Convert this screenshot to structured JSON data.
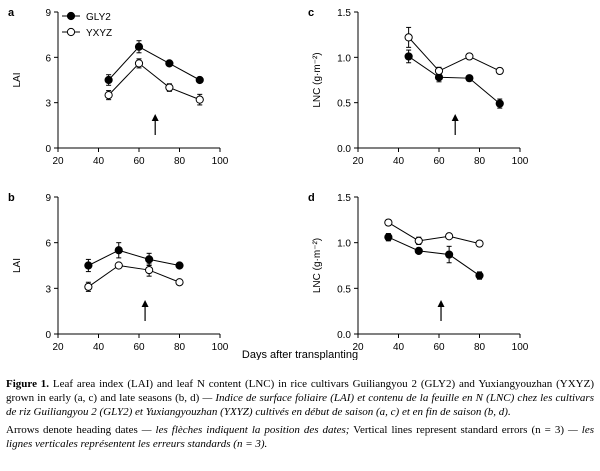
{
  "chart_data": [
    {
      "type": "line",
      "panel": "a",
      "ylabel": "LAI",
      "xlim": [
        20,
        100
      ],
      "ylim": [
        0,
        9
      ],
      "xticks": [
        20,
        40,
        60,
        80,
        100
      ],
      "yticks": [
        0,
        3,
        6,
        9
      ],
      "arrow_x": 68,
      "legend": [
        "GLY2",
        "YXYZ"
      ],
      "legend_position": "top-left",
      "series": [
        {
          "name": "GLY2",
          "marker": "filled",
          "x": [
            45,
            60,
            75,
            90
          ],
          "y": [
            4.5,
            6.7,
            5.6,
            4.5
          ],
          "err": [
            0.35,
            0.4,
            0.15,
            0.15
          ]
        },
        {
          "name": "YXYZ",
          "marker": "open",
          "x": [
            45,
            60,
            75,
            90
          ],
          "y": [
            3.5,
            5.6,
            4.0,
            3.2
          ],
          "err": [
            0.3,
            0.3,
            0.25,
            0.35
          ]
        }
      ]
    },
    {
      "type": "line",
      "panel": "c",
      "ylabel": "LNC (g·m⁻²)",
      "xlim": [
        20,
        100
      ],
      "ylim": [
        0,
        1.5
      ],
      "xticks": [
        20,
        40,
        60,
        80,
        100
      ],
      "yticks": [
        0.0,
        0.5,
        1.0,
        1.5
      ],
      "arrow_x": 68,
      "series": [
        {
          "name": "GLY2",
          "marker": "filled",
          "x": [
            45,
            60,
            75,
            90
          ],
          "y": [
            1.01,
            0.78,
            0.77,
            0.49
          ],
          "err": [
            0.07,
            0.05,
            0.03,
            0.05
          ]
        },
        {
          "name": "YXYZ",
          "marker": "open",
          "x": [
            45,
            60,
            75,
            90
          ],
          "y": [
            1.22,
            0.85,
            1.01,
            0.85
          ],
          "err": [
            0.11,
            0.04,
            0.02,
            0.03
          ]
        }
      ]
    },
    {
      "type": "line",
      "panel": "b",
      "ylabel": "LAI",
      "xlim": [
        20,
        100
      ],
      "ylim": [
        0,
        9
      ],
      "xticks": [
        20,
        40,
        60,
        80,
        100
      ],
      "yticks": [
        0,
        3,
        6,
        9
      ],
      "arrow_x": 63,
      "series": [
        {
          "name": "GLY2",
          "marker": "filled",
          "x": [
            35,
            50,
            65,
            80
          ],
          "y": [
            4.5,
            5.5,
            4.9,
            4.5
          ],
          "err": [
            0.4,
            0.5,
            0.4,
            0.15
          ]
        },
        {
          "name": "YXYZ",
          "marker": "open",
          "x": [
            35,
            50,
            65,
            80
          ],
          "y": [
            3.1,
            4.5,
            4.2,
            3.4
          ],
          "err": [
            0.3,
            0.1,
            0.4,
            0.15
          ]
        }
      ]
    },
    {
      "type": "line",
      "panel": "d",
      "ylabel": "LNC (g·m⁻²)",
      "xlim": [
        20,
        100
      ],
      "ylim": [
        0,
        1.5
      ],
      "xticks": [
        20,
        40,
        60,
        80,
        100
      ],
      "yticks": [
        0.0,
        0.5,
        1.0,
        1.5
      ],
      "arrow_x": 61,
      "series": [
        {
          "name": "GLY2",
          "marker": "filled",
          "x": [
            35,
            50,
            65,
            80
          ],
          "y": [
            1.06,
            0.91,
            0.87,
            0.64
          ],
          "err": [
            0.04,
            0.02,
            0.09,
            0.04
          ]
        },
        {
          "name": "YXYZ",
          "marker": "open",
          "x": [
            35,
            50,
            65,
            80
          ],
          "y": [
            1.22,
            1.02,
            1.07,
            0.99
          ],
          "err": [
            0.03,
            0.04,
            0.02,
            0.02
          ]
        }
      ]
    }
  ],
  "xlabel": "Days after transplanting",
  "caption": {
    "label": "Figure 1.",
    "english": "Leaf area index (LAI) and leaf N content (LNC) in rice cultivars Guiliangyou 2 (GLY2) and Yuxiangyouzhan (YXYZ) grown in early (a, c) and late seasons (b, d)",
    "french": "— Indice de surface foliaire (LAI) et contenu de la feuille en N (LNC) chez les cultivars de riz Guiliangyou 2 (GLY2) et Yuxiangyouzhan (YXYZ) cultivés en début de saison (a, c) et en fin de saison (b, d).",
    "notes_english_1": "Arrows denote heading dates",
    "notes_french_1": "— les flèches indiquent la position des dates;",
    "notes_english_2": "Vertical lines represent standard errors (n = 3)",
    "notes_french_2": "— les lignes verticales représentent les erreurs standards (n = 3)."
  }
}
